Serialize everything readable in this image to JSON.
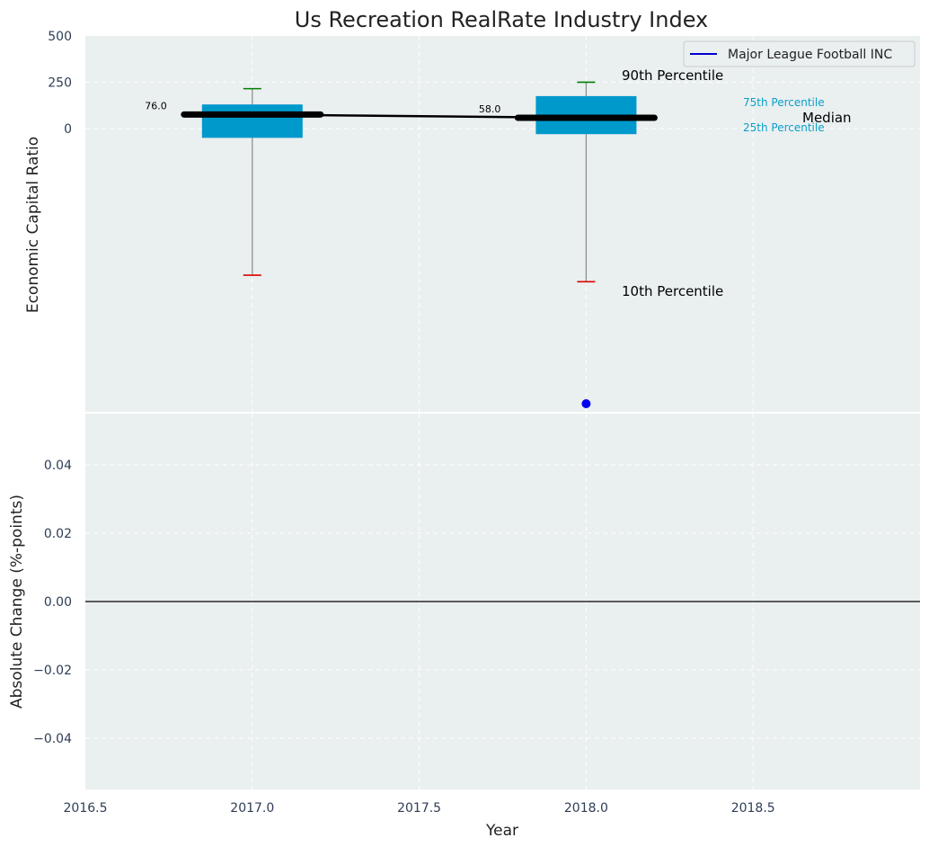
{
  "chart_data": [
    {
      "type": "box",
      "title": "Us Recreation RealRate Industry Index",
      "xlabel": "",
      "ylabel": "Economic Capital Ratio",
      "ylim": [
        -1500,
        500
      ],
      "y_ticks": [
        500,
        250,
        0
      ],
      "x_range": [
        2016.5,
        2019.0
      ],
      "grid": true,
      "legend": {
        "placement": "top-right",
        "entries": [
          {
            "name": "Major League Football INC",
            "color": "#0000cc"
          }
        ]
      },
      "boxes": [
        {
          "x": 2017.0,
          "p10": -790,
          "p25": -50,
          "median": 76,
          "p75": 130,
          "p90": 215,
          "median_label": "76.0"
        },
        {
          "x": 2018.0,
          "p10": -825,
          "p25": -30,
          "median": 58,
          "p75": 175,
          "p90": 250,
          "median_label": "58.0"
        }
      ],
      "median_line": [
        {
          "x": 2017.0,
          "y": 76
        },
        {
          "x": 2018.0,
          "y": 58
        }
      ],
      "company_points": [
        {
          "x": 2018.0,
          "y": -1480
        }
      ],
      "annotations": {
        "p90": "90th Percentile",
        "p75": "75th Percentile",
        "median": "Median",
        "p25": "25th Percentile",
        "p10": "10th Percentile"
      },
      "colors": {
        "box": "#0099cc",
        "median": "#000000",
        "whisker_top": "#008000",
        "whisker_bottom": "#dd0000",
        "point": "#0000ee",
        "background": "#eaeff0"
      }
    },
    {
      "type": "line",
      "title": "",
      "xlabel": "Year",
      "ylabel": "Absolute Change (%-points)",
      "ylim": [
        -0.055,
        0.055
      ],
      "y_ticks": [
        0.04,
        0.02,
        0.0,
        -0.02,
        -0.04
      ],
      "y_tick_labels": [
        "0.04",
        "0.02",
        "0.00",
        "−0.02",
        "−0.04"
      ],
      "x_ticks": [
        2016.5,
        2017.0,
        2017.5,
        2018.0,
        2018.5
      ],
      "x_tick_labels": [
        "2016.5",
        "2017.0",
        "2017.5",
        "2018.0",
        "2018.5"
      ],
      "x_range": [
        2016.5,
        2019.0
      ],
      "grid": true,
      "reference_line": 0.0,
      "series": []
    }
  ]
}
